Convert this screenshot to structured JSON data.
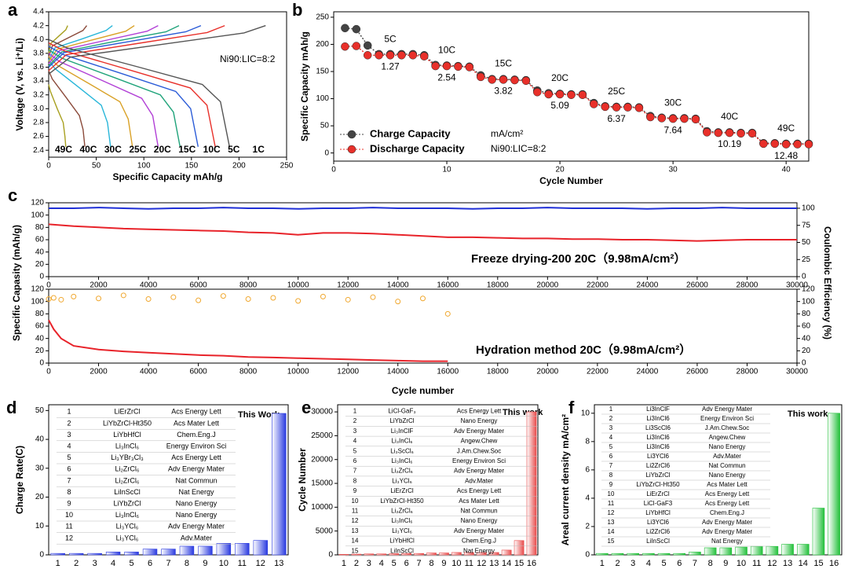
{
  "chart_data": [
    {
      "panel": "a",
      "type": "line",
      "xlabel": "Specific Capacity mAh/g",
      "ylabel": "Voltage (V, vs. Li⁺/Li)",
      "annotation": "Ni90:LIC=8:2",
      "legend": "bottom",
      "xlim": [
        0,
        250
      ],
      "xticks": [
        0,
        50,
        100,
        150,
        200,
        250
      ],
      "ylim": [
        2.3,
        4.4
      ],
      "yticks": [
        2.4,
        2.6,
        2.8,
        {
          "value": 3,
          "label": "3.0"
        },
        3.2,
        3.4,
        3.6,
        3.8,
        {
          "value": 4,
          "label": "4.0"
        },
        4.2,
        4.4
      ],
      "series": [
        {
          "name": "49C",
          "color": "#a8a020",
          "style": "line",
          "x": [
            0,
            2,
            10,
            18,
            20,
            null,
            0,
            1.8,
            9,
            15.3,
            17.1,
            18
          ],
          "values": [
            3.8,
            3.94,
            4.04,
            4.14,
            4.2,
            null,
            3.35,
            3.25,
            3.0,
            2.8,
            2.6,
            2.45
          ]
        },
        {
          "name": "40C",
          "color": "#8b4a3a",
          "style": "line",
          "x": [
            0,
            4,
            20,
            36,
            40,
            null,
            0,
            3.8,
            19,
            32.3,
            36.1,
            38
          ],
          "values": [
            3.75,
            3.91,
            4.02,
            4.13,
            4.2,
            null,
            3.55,
            3.43,
            3.15,
            2.9,
            2.7,
            2.45
          ]
        },
        {
          "name": "30C",
          "color": "#28b6d9",
          "style": "line",
          "x": [
            0,
            6.7,
            33.5,
            60.3,
            67,
            null,
            0,
            6.5,
            32.5,
            55.3,
            61.8,
            65
          ],
          "values": [
            3.7,
            3.88,
            4.0,
            4.13,
            4.2,
            null,
            3.7,
            3.58,
            3.3,
            3.05,
            2.8,
            2.45
          ]
        },
        {
          "name": "25C",
          "color": "#d9a126",
          "style": "line",
          "x": [
            0,
            9,
            45,
            81,
            90,
            null,
            0,
            8.8,
            44,
            74.8,
            83.6,
            88
          ],
          "values": [
            3.68,
            3.86,
            3.99,
            4.12,
            4.2,
            null,
            3.75,
            3.63,
            3.35,
            3.1,
            2.85,
            2.45
          ]
        },
        {
          "name": "20C",
          "color": "#b13fd6",
          "style": "line",
          "x": [
            0,
            11.5,
            57.5,
            103.5,
            115,
            null,
            0,
            11.5,
            57.5,
            97.8,
            109.3,
            115
          ],
          "values": [
            3.65,
            3.84,
            3.98,
            4.12,
            4.2,
            null,
            3.8,
            3.68,
            3.4,
            3.15,
            2.9,
            2.45
          ]
        },
        {
          "name": "15C",
          "color": "#1fa37a",
          "style": "line",
          "x": [
            0,
            13.7,
            68.5,
            123.3,
            137,
            null,
            0,
            13.8,
            69,
            117.3,
            131.1,
            138
          ],
          "values": [
            3.62,
            3.82,
            3.97,
            4.11,
            4.2,
            null,
            3.85,
            3.73,
            3.45,
            3.2,
            2.95,
            2.45
          ]
        },
        {
          "name": "10C",
          "color": "#2a5bd7",
          "style": "line",
          "x": [
            0,
            16,
            80,
            144,
            160,
            null,
            0,
            15.7,
            78.5,
            133.5,
            149.2,
            157
          ],
          "values": [
            3.6,
            3.81,
            3.96,
            4.11,
            4.2,
            null,
            3.9,
            3.78,
            3.5,
            3.25,
            3.0,
            2.45
          ]
        },
        {
          "name": "5C",
          "color": "#e8302a",
          "style": "line",
          "x": [
            0,
            18.5,
            92.5,
            166.5,
            185,
            null,
            0,
            17.5,
            87.5,
            148.8,
            166.3,
            175
          ],
          "values": [
            3.55,
            3.78,
            3.94,
            4.1,
            4.2,
            null,
            3.95,
            3.83,
            3.55,
            3.3,
            3.05,
            2.45
          ]
        },
        {
          "name": "1C",
          "color": "#555555",
          "style": "line",
          "x": [
            0,
            22.8,
            114,
            205.2,
            228,
            null,
            0,
            19,
            95,
            161.5,
            180.5,
            190
          ],
          "values": [
            3.5,
            3.745,
            3.92,
            4.095,
            4.2,
            null,
            4.0,
            3.88,
            3.6,
            3.35,
            3.1,
            2.45
          ]
        }
      ]
    },
    {
      "panel": "b",
      "type": "line",
      "xlabel": "Cycle Number",
      "ylabel": "Specific Capacity mAh/g",
      "annotation": "Ni90:LIC=8:2",
      "unit": "mA/cm²",
      "legend": "lower left",
      "rates": [
        "5C",
        "10C",
        "15C",
        "20C",
        "25C",
        "30C",
        "40C",
        "49C"
      ],
      "current_densities": [
        1.27,
        2.54,
        3.82,
        5.09,
        6.37,
        7.64,
        10.19,
        12.48
      ],
      "xlim": [
        0,
        42
      ],
      "xticks": [
        0,
        10,
        20,
        30,
        40
      ],
      "ylim": [
        -15,
        260
      ],
      "yticks": [
        0,
        50,
        100,
        150,
        200,
        250
      ],
      "x": [
        1,
        2,
        3,
        4,
        5,
        6,
        7,
        8,
        9,
        10,
        11,
        12,
        13,
        14,
        15,
        16,
        17,
        18,
        19,
        20,
        21,
        22,
        23,
        24,
        25,
        26,
        27,
        28,
        29,
        30,
        31,
        32,
        33,
        34,
        35,
        36,
        37,
        38,
        39,
        40,
        41,
        42
      ],
      "series": [
        {
          "name": "Charge Capacity",
          "color": "#444444",
          "style": "line+markers",
          "values": [
            230,
            228,
            198,
            182,
            182,
            182,
            182,
            180,
            162,
            161,
            160,
            159,
            143,
            136,
            136,
            135,
            134,
            115,
            110,
            109,
            108,
            108,
            92,
            86,
            85,
            85,
            84,
            68,
            65,
            64,
            64,
            63,
            40,
            38,
            38,
            37,
            37,
            18,
            18,
            17,
            17,
            17
          ]
        },
        {
          "name": "Discharge Capacity",
          "color": "#e8302a",
          "style": "line+markers",
          "values": [
            196,
            197,
            180,
            180,
            180,
            180,
            180,
            178,
            160,
            160,
            159,
            158,
            140,
            135,
            135,
            134,
            133,
            112,
            108,
            108,
            107,
            107,
            90,
            85,
            84,
            84,
            83,
            66,
            64,
            63,
            63,
            62,
            38,
            37,
            37,
            36,
            36,
            17,
            17,
            16,
            16,
            16
          ]
        }
      ]
    },
    {
      "panel": "c",
      "type": "line",
      "ylabel": "Specific Capasity (mAh/g)",
      "y2label": "Coulombic Efficiency (%)",
      "annotation": "Freeze drying-200 20C（9.98mA/cm²）",
      "ycolor": "#e8232a",
      "y2color": "#1f2fd6",
      "xlim": [
        0,
        30000
      ],
      "xticks": [
        0,
        2000,
        4000,
        6000,
        8000,
        10000,
        12000,
        14000,
        16000,
        18000,
        20000,
        22000,
        24000,
        26000,
        28000,
        30000
      ],
      "ylim": [
        0,
        120
      ],
      "yticks": [
        0,
        20,
        40,
        60,
        80,
        100,
        120
      ],
      "y2lim": [
        0,
        108
      ],
      "y2ticks": [
        0,
        25,
        50,
        75,
        100
      ],
      "x": [
        0,
        1000,
        2000,
        3000,
        4000,
        5000,
        6000,
        7000,
        8000,
        9000,
        10000,
        11000,
        12000,
        13000,
        14000,
        15000,
        16000,
        17000,
        18000,
        19000,
        20000,
        21000,
        22000,
        23000,
        24000,
        25000,
        26000,
        27000,
        28000,
        29000,
        30000
      ],
      "series": [
        {
          "color": "#e8232a",
          "style": "line",
          "values": [
            85,
            82,
            80,
            78,
            77,
            76,
            75,
            74,
            72,
            71,
            68,
            71,
            71,
            70,
            68,
            66,
            64,
            64,
            63,
            62,
            62,
            61,
            61,
            60,
            60,
            59,
            58,
            59,
            60,
            60,
            60
          ]
        },
        {
          "color": "#1f2fd6",
          "style": "line",
          "axis": "y2",
          "values": [
            100,
            100,
            101,
            100,
            99,
            100,
            100,
            101,
            100,
            100,
            99,
            100,
            100,
            101,
            100,
            100,
            100,
            99,
            100,
            100,
            101,
            100,
            100,
            100,
            99,
            100,
            100,
            101,
            100,
            100,
            100
          ]
        }
      ]
    },
    {
      "type": "line",
      "xlabel": "Cycle number",
      "annotation": "Hydration method 20C（9.98mA/cm²）",
      "ycolor": "#e8232a",
      "y2color": "#1f2fd6",
      "xlim": [
        0,
        30000
      ],
      "xticks": [
        0,
        2000,
        4000,
        6000,
        8000,
        10000,
        12000,
        14000,
        16000,
        18000,
        20000,
        22000,
        24000,
        26000,
        28000,
        30000
      ],
      "ylim": [
        0,
        120
      ],
      "yticks": [
        0,
        20,
        40,
        60,
        80,
        100,
        120
      ],
      "y2lim": [
        0,
        120
      ],
      "y2ticks": [
        0,
        20,
        40,
        60,
        80,
        100,
        120
      ],
      "x": [
        0,
        200,
        500,
        1000,
        2000,
        3000,
        4000,
        5000,
        6000,
        7000,
        8000,
        9000,
        10000,
        11000,
        12000,
        13000,
        14000,
        15000,
        16000
      ],
      "series": [
        {
          "color": "#e8232a",
          "style": "line",
          "values": [
            70,
            55,
            40,
            28,
            22,
            19,
            17,
            15,
            13,
            12,
            10,
            9,
            8,
            7,
            6,
            5,
            4,
            3,
            3
          ]
        },
        {
          "color": "#f0a830",
          "style": "markers",
          "axis": "y2",
          "values": [
            104,
            106,
            103,
            108,
            105,
            110,
            104,
            107,
            102,
            109,
            104,
            106,
            101,
            108,
            103,
            107,
            100,
            105,
            80
          ]
        }
      ]
    },
    {
      "panel": "d",
      "type": "bar",
      "ylabel": "Charge Rate(C)",
      "annotation": "This Work",
      "color": "#2a3ae0",
      "categories": [
        "1",
        "2",
        "3",
        "4",
        "5",
        "6",
        "7",
        "8",
        "9",
        "10",
        "11",
        "12",
        "13"
      ],
      "values": [
        0.5,
        0.5,
        0.5,
        1,
        1,
        2,
        2,
        3,
        3,
        4,
        4,
        5,
        49
      ],
      "ylim": [
        0,
        52
      ],
      "yticks": [
        0,
        10,
        20,
        30,
        40,
        50
      ],
      "table": {
        "rows": [
          [
            "1",
            "LiErZrCl",
            "Acs Energy Lett"
          ],
          [
            "2",
            "LiYbZrCl-Ht350",
            "Acs Mater Lett"
          ],
          [
            "3",
            "LiYbHfCl",
            "Chem.Eng.J"
          ],
          [
            "4",
            "Li₃InCl₆",
            "Energy Environ Sci"
          ],
          [
            "5",
            "Li₃YBr₃Cl₃",
            "Acs Energy Lett"
          ],
          [
            "6",
            "Li₂ZrCl₆",
            "Adv Energy Mater"
          ],
          [
            "7",
            "Li₂ZrCl₆",
            "Nat Commun"
          ],
          [
            "8",
            "LiInScCl",
            "Nat Energy"
          ],
          [
            "9",
            "LiYbZrCl",
            "Nano Energy"
          ],
          [
            "10",
            "Li₃InCl₆",
            "Nano Energy"
          ],
          [
            "11",
            "Li₃YCl₆",
            "Adv Energy Mater"
          ],
          [
            "12",
            "Li₃YCl₆",
            "Adv.Mater"
          ]
        ]
      }
    },
    {
      "panel": "e",
      "type": "bar",
      "ylabel": "Cycle Number",
      "annotation": "This work",
      "color": "#e84a4a",
      "categories": [
        "1",
        "2",
        "3",
        "4",
        "5",
        "6",
        "7",
        "8",
        "9",
        "10",
        "11",
        "12",
        "13",
        "14",
        "15",
        "16"
      ],
      "values": [
        100,
        150,
        200,
        200,
        250,
        300,
        300,
        400,
        400,
        500,
        500,
        500,
        500,
        1000,
        3000,
        30000
      ],
      "ylim": [
        0,
        31500
      ],
      "yticks": [
        0,
        5000,
        10000,
        15000,
        20000,
        25000,
        30000
      ],
      "table": {
        "rows": [
          [
            "1",
            "LiCl-GaF₃",
            "Acs Energy Lett"
          ],
          [
            "2",
            "LiYbZrCl",
            "Nano Energy"
          ],
          [
            "3",
            "Li₃InClF",
            "Adv Energy Mater"
          ],
          [
            "4",
            "Li₃InCl₆",
            "Angew.Chew"
          ],
          [
            "5",
            "Li₃ScCl₆",
            "J.Am.Chew.Soc"
          ],
          [
            "6",
            "Li₃InCl₆",
            "Energy Environ Sci"
          ],
          [
            "7",
            "Li₂ZrCl₆",
            "Adv Energy Mater"
          ],
          [
            "8",
            "Li₃YCl₆",
            "Adv.Mater"
          ],
          [
            "9",
            "LiErZrCl",
            "Acs Energy Lett"
          ],
          [
            "10",
            "LiYbZrCl-Ht350",
            "Acs Mater Lett"
          ],
          [
            "11",
            "Li₂ZrCl₆",
            "Nat Commun"
          ],
          [
            "12",
            "Li₃InCl₆",
            "Nano Energy"
          ],
          [
            "13",
            "Li₃YCl₆",
            "Adv Energy Mater"
          ],
          [
            "14",
            "LiYbHfCl",
            "Chem.Eng.J"
          ],
          [
            "15",
            "LiInScCl",
            "Nat Energy"
          ]
        ]
      }
    },
    {
      "panel": "f",
      "type": "bar",
      "ylabel": "Areal current density mA/cm²",
      "annotation": "This work",
      "color": "#22c03a",
      "categories": [
        "1",
        "2",
        "3",
        "4",
        "5",
        "6",
        "7",
        "8",
        "9",
        "10",
        "11",
        "12",
        "13",
        "14",
        "15",
        "16"
      ],
      "values": [
        0.1,
        0.1,
        0.1,
        0.1,
        0.1,
        0.1,
        0.2,
        0.5,
        0.5,
        0.55,
        0.6,
        0.6,
        0.75,
        0.75,
        3.3,
        10
      ],
      "ylim": [
        0,
        10.6
      ],
      "yticks": [
        0,
        2,
        4,
        6,
        8,
        10
      ],
      "table": {
        "rows": [
          [
            "1",
            "Li3InClF",
            "Adv Energy Mater"
          ],
          [
            "2",
            "Li3InCl6",
            "Energy Environ Sci"
          ],
          [
            "3",
            "Li3ScCl6",
            "J.Am.Chew.Soc"
          ],
          [
            "4",
            "Li3InCl6",
            "Angew.Chew"
          ],
          [
            "5",
            "Li3InCl6",
            "Nano Energy"
          ],
          [
            "6",
            "Li3YCl6",
            "Adv.Mater"
          ],
          [
            "7",
            "Li2ZrCl6",
            "Nat Commun"
          ],
          [
            "8",
            "LiYbZrCl",
            "Nano Energy"
          ],
          [
            "9",
            "LiYbZrCl-Ht350",
            "Acs Mater Lett"
          ],
          [
            "10",
            "LiErZrCl",
            "Acs Energy Lett"
          ],
          [
            "11",
            "LiCl-GaF3",
            "Acs Energy Lett"
          ],
          [
            "12",
            "LiYbHfCl",
            "Chem.Eng.J"
          ],
          [
            "13",
            "Li3YCl6",
            "Adv Energy Mater"
          ],
          [
            "14",
            "Li2ZrCl6",
            "Adv Energy Mater"
          ],
          [
            "15",
            "LiInScCl",
            "Nat Energy"
          ]
        ]
      }
    }
  ]
}
